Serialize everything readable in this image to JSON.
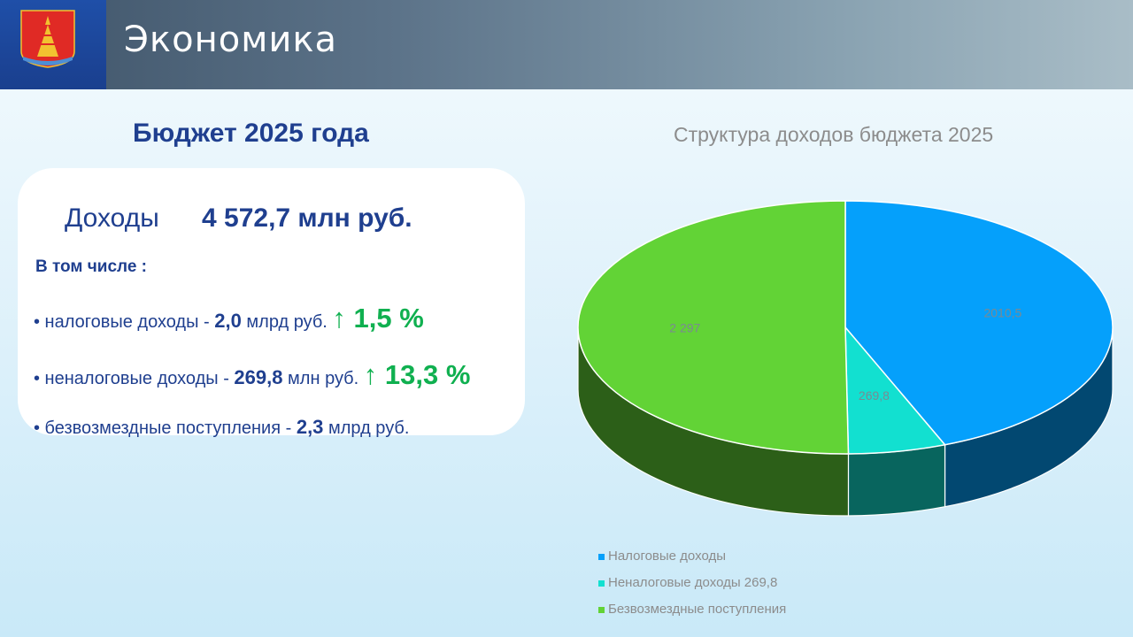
{
  "header": {
    "title": "Экономика"
  },
  "budget": {
    "title": "Бюджет 2025 года",
    "income_label": "Доходы",
    "income_value": "4 572,7 млн руб.",
    "including": "В том числе :",
    "items": [
      {
        "prefix": "• налоговые доходы - ",
        "value": "2,0",
        "unit": " млрд руб.",
        "growth": "↑ 1,5 %"
      },
      {
        "prefix": "• неналоговые доходы - ",
        "value": "269,8",
        "unit": "  млн руб.",
        "growth": "↑ 13,3 %"
      },
      {
        "prefix": "• безвозмездные поступления - ",
        "value": "2,3",
        "unit": " млрд руб.",
        "growth": ""
      }
    ]
  },
  "chart_data": {
    "type": "pie",
    "title": "Структура доходов бюджета 2025",
    "series": [
      {
        "name": "Налоговые доходы",
        "value": 2010.5,
        "label": "2010,5",
        "color": "#05a0fb"
      },
      {
        "name": "Неналоговые доходы 269,8",
        "value": 269.8,
        "label": "269,8",
        "color": "#12e0d0"
      },
      {
        "name": "Безвозмездные поступления",
        "value": 2297,
        "label": "2 297",
        "color": "#62d336"
      }
    ],
    "legend": "bottom"
  }
}
